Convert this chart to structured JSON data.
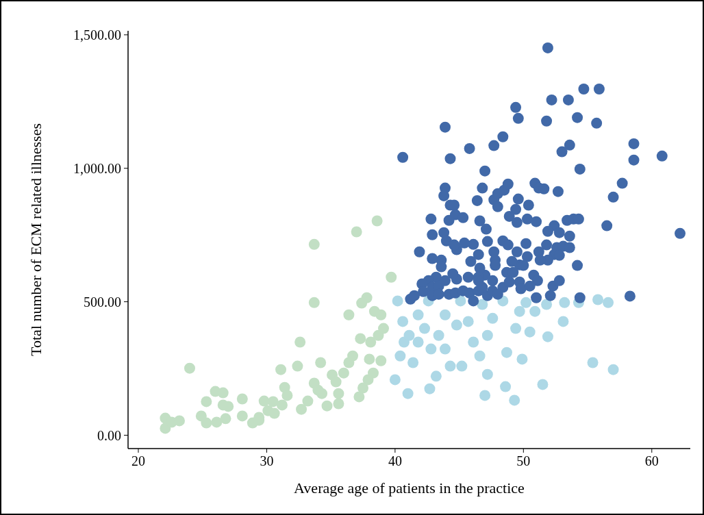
{
  "chart_data": {
    "type": "scatter",
    "xlabel": "Average age of patients in the practice",
    "ylabel": "Total number of ECM related illnesses",
    "xlim": [
      19.2,
      63
    ],
    "ylim": [
      -50,
      1515
    ],
    "xticks": [
      20,
      30,
      40,
      50,
      60
    ],
    "yticks": [
      {
        "value": 0,
        "label": "0.00"
      },
      {
        "value": 500,
        "label": "500.00"
      },
      {
        "value": 1000,
        "label": "1,000.00"
      },
      {
        "value": 1500,
        "label": "1,500.00"
      }
    ],
    "grid": false,
    "marker": "circle",
    "series": [
      {
        "color": "#c2dfc4",
        "x": [
          22.1,
          22.1,
          22.6,
          23.2,
          24.0,
          24.9,
          25.3,
          25.3,
          26.0,
          26.6,
          26.6,
          27.0,
          26.8,
          26.1,
          28.1,
          28.1,
          28.9,
          29.4,
          29.8,
          29.4,
          30.1,
          30.6,
          30.5,
          31.1,
          31.4,
          31.6,
          31.2,
          32.4,
          32.6,
          32.7,
          33.2,
          33.7,
          33.7,
          33.7,
          34.0,
          34.3,
          34.7,
          34.2,
          35.1,
          35.4,
          35.6,
          36.0,
          36.4,
          36.4,
          36.7,
          37.0,
          38.6,
          37.5,
          37.9,
          38.3,
          38.0,
          38.7,
          38.9,
          37.8,
          38.4,
          38.9,
          37.4,
          39.7,
          39.1,
          38.1,
          37.3,
          37.2,
          35.6
        ],
        "values": [
          64,
          26,
          49,
          54,
          251,
          72,
          46,
          126,
          164,
          159,
          113,
          108,
          62,
          49,
          136,
          72,
          46,
          67,
          128,
          56,
          92,
          82,
          126,
          246,
          179,
          149,
          113,
          259,
          349,
          97,
          128,
          715,
          497,
          195,
          169,
          156,
          110,
          272,
          226,
          200,
          156,
          233,
          451,
          272,
          297,
          762,
          803,
          177,
          208,
          233,
          285,
          374,
          279,
          515,
          464,
          451,
          495,
          592,
          400,
          349,
          362,
          144,
          118
        ]
      },
      {
        "color": "#add8e6",
        "x": [
          40.0,
          40.4,
          40.7,
          40.6,
          41.0,
          41.4,
          41.8,
          41.8,
          42.3,
          42.6,
          42.8,
          42.7,
          43.2,
          43.4,
          43.9,
          43.9,
          44.3,
          44.8,
          45.1,
          45.2,
          45.7,
          46.1,
          46.6,
          47.0,
          47.2,
          46.8,
          47.2,
          47.6,
          48.4,
          48.6,
          48.7,
          49.3,
          49.4,
          49.7,
          49.9,
          50.2,
          50.5,
          50.9,
          51.5,
          51.9,
          51.8,
          53.1,
          53.2,
          54.3,
          55.4,
          55.8,
          56.6,
          57.0,
          40.2,
          41.1
        ],
        "values": [
          208,
          297,
          349,
          426,
          156,
          272,
          349,
          451,
          400,
          503,
          323,
          174,
          221,
          374,
          451,
          323,
          259,
          413,
          503,
          259,
          426,
          349,
          297,
          149,
          228,
          490,
          374,
          438,
          503,
          182,
          310,
          131,
          400,
          464,
          285,
          497,
          387,
          464,
          190,
          369,
          490,
          426,
          497,
          497,
          272,
          508,
          497,
          246,
          503,
          374
        ]
      },
      {
        "color": "#4169a8",
        "x": [
          40.6,
          43.9,
          44.3,
          45.8,
          47.0,
          48.4,
          49.4,
          49.6,
          47.7,
          51.9,
          51.8,
          52.2,
          53.5,
          54.7,
          55.9,
          55.7,
          54.2,
          53.6,
          53.0,
          54.4,
          57.0,
          57.7,
          58.6,
          58.6,
          60.8,
          62.2,
          56.5,
          58.3,
          52.1,
          54.4,
          43.9,
          43.8,
          44.3,
          44.6,
          44.7,
          45.3,
          44.2,
          42.8,
          41.9,
          42.9,
          43.8,
          44.0,
          44.8,
          44.6,
          45.4,
          46.1,
          46.6,
          47.1,
          47.2,
          46.4,
          46.8,
          47.7,
          48.0,
          48.5,
          48.8,
          49.6,
          50.4,
          50.9,
          51.2,
          51.6,
          52.7,
          48.0,
          48.9,
          49.5,
          50.3,
          51.0,
          49.4,
          52.4,
          53.4,
          53.9,
          54.3,
          53.6,
          52.8,
          51.9,
          51.8,
          52.6,
          53.1,
          53.6,
          52.4,
          51.9,
          51.2,
          50.2,
          50.3,
          49.7,
          49.1,
          50.0,
          48.4,
          48.8,
          49.5,
          47.7,
          47.8,
          47.8,
          48.7,
          49.2,
          49.7,
          50.8,
          51.3,
          52.8,
          54.2,
          51.1,
          52.3,
          52.8,
          49.8,
          50.5,
          51.0,
          47.6,
          47.0,
          46.6,
          46.5,
          45.9,
          45.7,
          44.8,
          44.5,
          43.6,
          43.6,
          42.9,
          43.2,
          42.6,
          42.1,
          42.2,
          42.9,
          43.4,
          43.9,
          41.2,
          41.5,
          42.9,
          43.4,
          44.2,
          44.7,
          45.3,
          45.8,
          46.5,
          47.2,
          46.1,
          46.8,
          47.6,
          48.4,
          48.9,
          48.0,
          46.5,
          46.5
        ],
        "values": [
          1041,
          1154,
          1036,
          1074,
          990,
          1118,
          1228,
          1187,
          1085,
          1451,
          1177,
          1256,
          1256,
          1297,
          1297,
          1169,
          1190,
          1087,
          1062,
          997,
          892,
          944,
          1092,
          1031,
          1046,
          756,
          785,
          521,
          523,
          515,
          926,
          897,
          862,
          862,
          826,
          815,
          805,
          810,
          687,
          751,
          759,
          728,
          695,
          713,
          720,
          715,
          803,
          772,
          726,
          879,
          926,
          882,
          905,
          918,
          941,
          885,
          862,
          944,
          926,
          923,
          913,
          856,
          820,
          797,
          810,
          800,
          846,
          785,
          805,
          810,
          810,
          746,
          759,
          764,
          713,
          703,
          708,
          703,
          677,
          656,
          687,
          718,
          669,
          638,
          651,
          636,
          728,
          713,
          687,
          687,
          656,
          636,
          610,
          610,
          574,
          600,
          656,
          674,
          636,
          579,
          559,
          579,
          549,
          559,
          515,
          579,
          600,
          626,
          677,
          651,
          592,
          585,
          605,
          656,
          631,
          662,
          592,
          579,
          567,
          538,
          554,
          559,
          579,
          510,
          523,
          523,
          528,
          528,
          533,
          541,
          533,
          541,
          523,
          503,
          554,
          541,
          554,
          574,
          528,
          592,
          579
        ]
      }
    ]
  }
}
